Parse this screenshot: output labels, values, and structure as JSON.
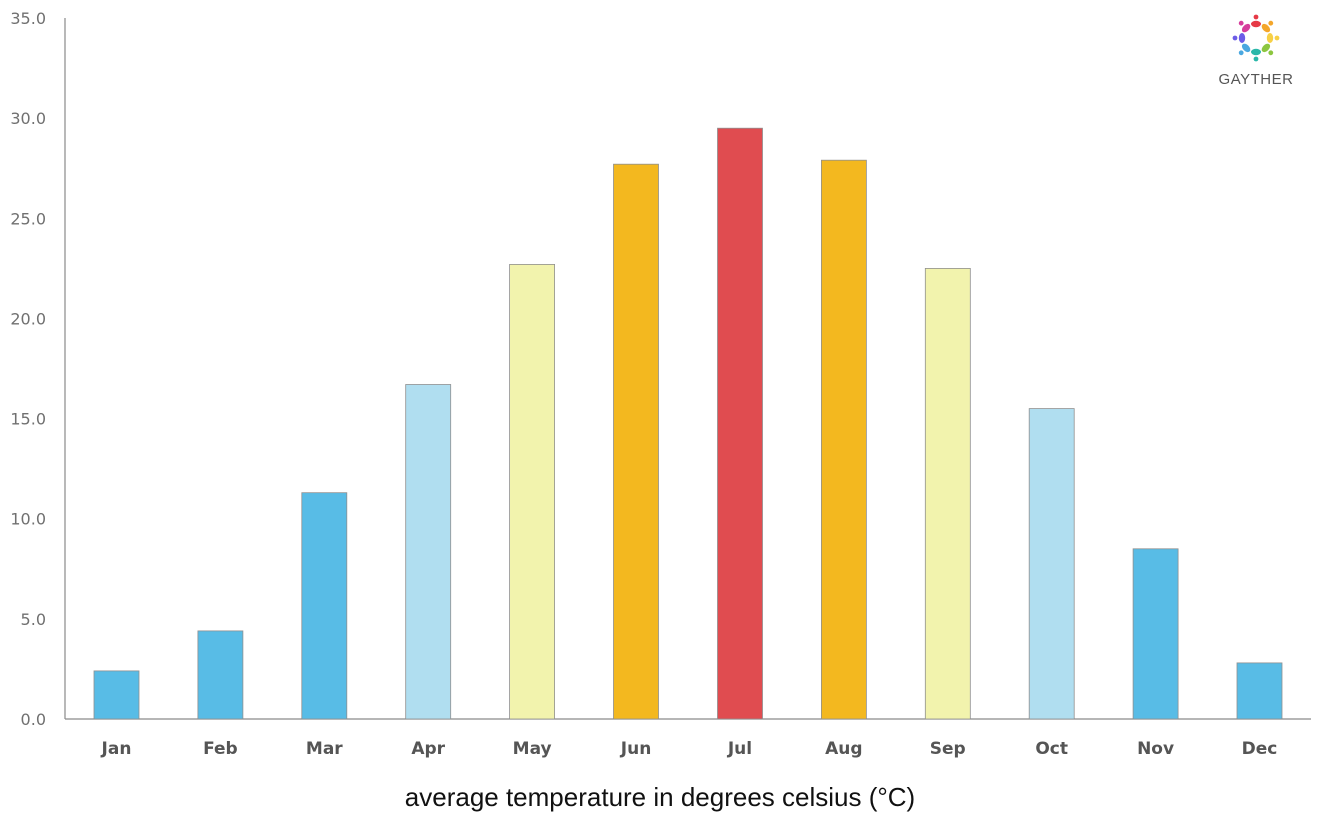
{
  "brand": {
    "name": "GAYTHER",
    "logo_colors": [
      "#e63946",
      "#f4a62a",
      "#f7d046",
      "#8cc63f",
      "#2ab7a9",
      "#4aa8e0",
      "#6c5ce7",
      "#d63c9c"
    ]
  },
  "chart_data": {
    "type": "bar",
    "categories": [
      "Jan",
      "Feb",
      "Mar",
      "Apr",
      "May",
      "Jun",
      "Jul",
      "Aug",
      "Sep",
      "Oct",
      "Nov",
      "Dec"
    ],
    "values": [
      2.4,
      4.4,
      11.3,
      16.7,
      22.7,
      27.7,
      29.5,
      27.9,
      22.5,
      15.5,
      8.5,
      2.8
    ],
    "colors": [
      "#58bce6",
      "#58bce6",
      "#58bce6",
      "#b0def0",
      "#f2f3ad",
      "#f3b81f",
      "#e04c50",
      "#f3b81f",
      "#f2f3ad",
      "#b0def0",
      "#58bce6",
      "#58bce6"
    ],
    "title": "",
    "xlabel": "average temperature in degrees celsius (°C)",
    "ylabel": "",
    "ylim": [
      0,
      35
    ],
    "yticks": [
      "0.0",
      "5.0",
      "10.0",
      "15.0",
      "20.0",
      "25.0",
      "30.0",
      "35.0"
    ],
    "ytick_values": [
      0,
      5,
      10,
      15,
      20,
      25,
      30,
      35
    ],
    "grid": false,
    "legend": "none"
  }
}
